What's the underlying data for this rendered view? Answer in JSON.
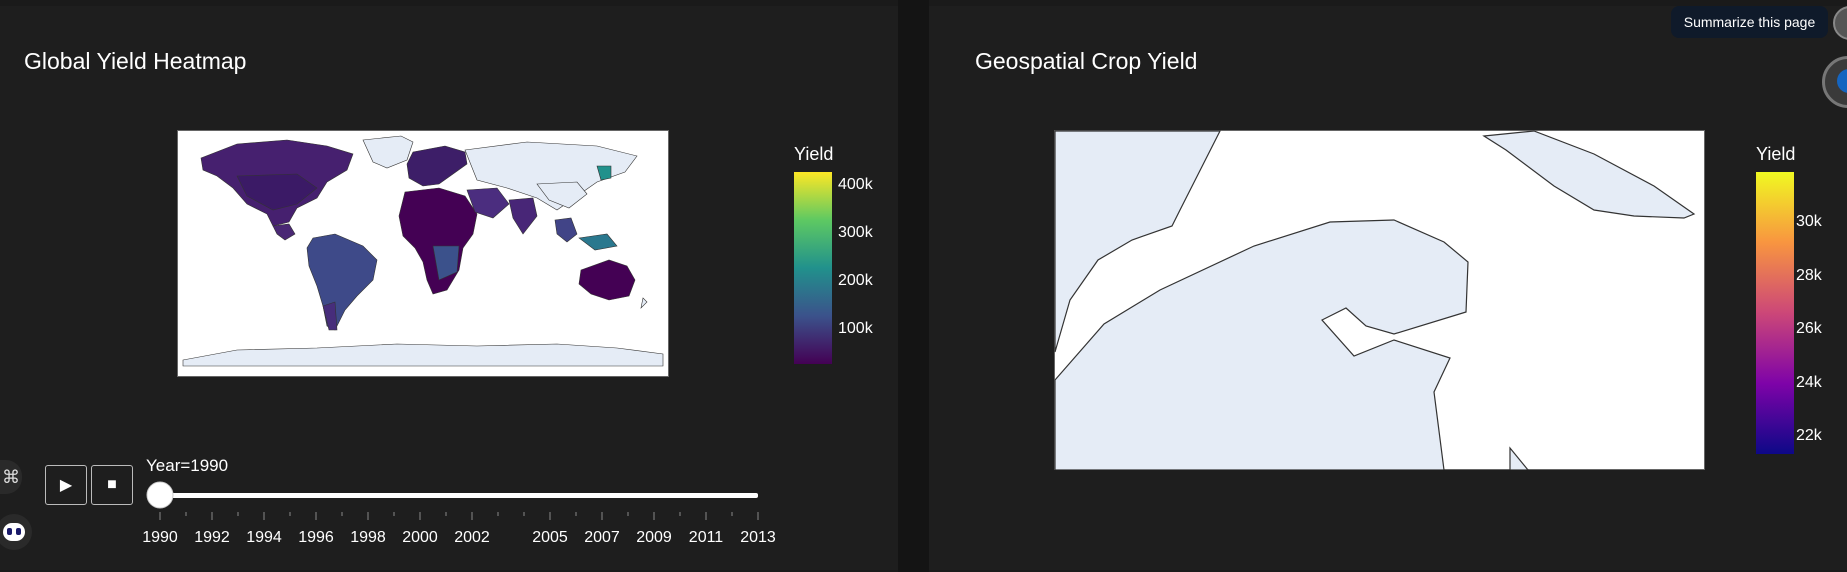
{
  "left_panel": {
    "title": "Global Yield Heatmap",
    "colorbar": {
      "title": "Yield",
      "colorscale": "viridis",
      "ticks": [
        "400k",
        "300k",
        "200k",
        "100k"
      ]
    },
    "animation": {
      "play_icon": "play-icon",
      "stop_icon": "stop-icon",
      "current_label": "Year=1990",
      "current_year": 1990,
      "years": [
        "1990",
        "1992",
        "1994",
        "1996",
        "1998",
        "2000",
        "2002",
        "2005",
        "2007",
        "2009",
        "2011",
        "2013"
      ]
    }
  },
  "right_panel": {
    "title": "Geospatial Crop Yield",
    "colorbar": {
      "title": "Yield",
      "colorscale": "plasma",
      "ticks": [
        "30k",
        "28k",
        "26k",
        "24k",
        "22k"
      ]
    }
  },
  "overlay": {
    "tooltip": "Summarize this page",
    "icons": [
      "command-icon",
      "assistant-icon",
      "extension-icon",
      "profile-icon"
    ]
  },
  "colors": {
    "background": "#1e1e1e",
    "land": "#e5ecf6",
    "ocean": "#ffffff",
    "viridis_dark": "#440154",
    "viridis_light": "#fde725"
  }
}
